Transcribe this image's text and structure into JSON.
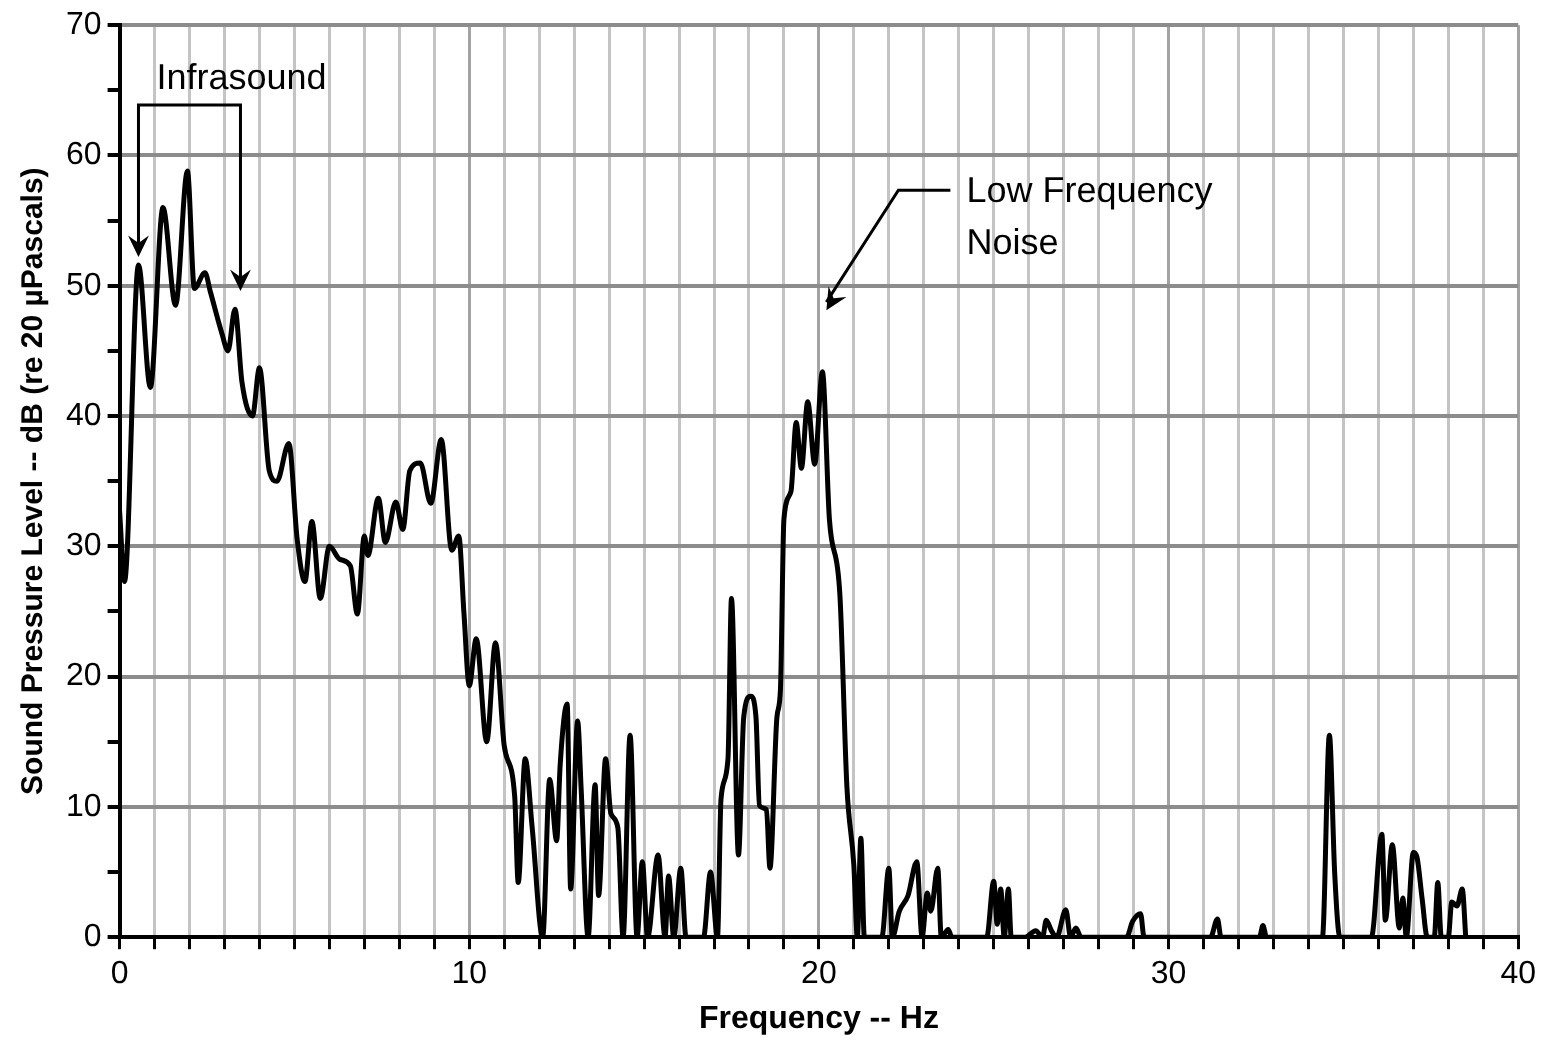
{
  "chart_data": {
    "type": "line",
    "xlabel": "Frequency -- Hz",
    "ylabel": "Sound Pressure Level -- dB (re 20 µPascals)",
    "xlim": [
      0,
      40
    ],
    "ylim": [
      0,
      70
    ],
    "xticks": [
      0,
      {
        "value": 1,
        "label": null
      },
      {
        "value": 2,
        "label": null
      },
      {
        "value": 3,
        "label": null
      },
      {
        "value": 4,
        "label": null
      },
      {
        "value": 5,
        "label": null
      },
      {
        "value": 6,
        "label": null
      },
      {
        "value": 7,
        "label": null
      },
      {
        "value": 8,
        "label": null
      },
      {
        "value": 9,
        "label": null
      },
      10,
      {
        "value": 11,
        "label": null
      },
      {
        "value": 12,
        "label": null
      },
      {
        "value": 13,
        "label": null
      },
      {
        "value": 14,
        "label": null
      },
      {
        "value": 15,
        "label": null
      },
      {
        "value": 16,
        "label": null
      },
      {
        "value": 17,
        "label": null
      },
      {
        "value": 18,
        "label": null
      },
      {
        "value": 19,
        "label": null
      },
      20,
      {
        "value": 21,
        "label": null
      },
      {
        "value": 22,
        "label": null
      },
      {
        "value": 23,
        "label": null
      },
      {
        "value": 24,
        "label": null
      },
      {
        "value": 25,
        "label": null
      },
      {
        "value": 26,
        "label": null
      },
      {
        "value": 27,
        "label": null
      },
      {
        "value": 28,
        "label": null
      },
      {
        "value": 29,
        "label": null
      },
      30,
      {
        "value": 31,
        "label": null
      },
      {
        "value": 32,
        "label": null
      },
      {
        "value": 33,
        "label": null
      },
      {
        "value": 34,
        "label": null
      },
      {
        "value": 35,
        "label": null
      },
      {
        "value": 36,
        "label": null
      },
      {
        "value": 37,
        "label": null
      },
      {
        "value": 38,
        "label": null
      },
      {
        "value": 39,
        "label": null
      },
      40
    ],
    "yticks": [
      0,
      {
        "value": 5,
        "label": null
      },
      10,
      {
        "value": 15,
        "label": null
      },
      20,
      {
        "value": 25,
        "label": null
      },
      30,
      {
        "value": 35,
        "label": null
      },
      40,
      {
        "value": 45,
        "label": null
      },
      50,
      {
        "value": 55,
        "label": null
      },
      60,
      {
        "value": 65,
        "label": null
      },
      70
    ],
    "grid": true,
    "legend": false,
    "marker": "none",
    "line_style": "solid",
    "series": [
      {
        "color": "#000000",
        "x": [
          0,
          0.14,
          0.54,
          0.88,
          1.24,
          1.6,
          1.94,
          2.14,
          2.44,
          2.6,
          2.93,
          3.1,
          3.3,
          3.5,
          3.8,
          4.0,
          4.28,
          4.5,
          4.84,
          5.08,
          5.3,
          5.5,
          5.74,
          6.0,
          6.3,
          6.6,
          6.8,
          7.0,
          7.1,
          7.4,
          7.6,
          7.9,
          8.1,
          8.3,
          8.6,
          8.9,
          9.2,
          9.5,
          9.7,
          9.85,
          10.0,
          10.2,
          10.5,
          10.75,
          11.0,
          11.3,
          11.4,
          11.6,
          11.8,
          12.1,
          12.3,
          12.5,
          12.6,
          12.8,
          12.9,
          13.1,
          13.2,
          13.4,
          13.6,
          13.7,
          13.9,
          14.05,
          14.25,
          14.4,
          14.6,
          14.8,
          14.95,
          15.1,
          15.4,
          15.6,
          15.7,
          15.85,
          16.05,
          16.2,
          16.7,
          16.9,
          17.1,
          17.2,
          17.4,
          17.5,
          17.7,
          17.85,
          18.05,
          18.2,
          18.3,
          18.5,
          18.6,
          18.8,
          18.9,
          19.0,
          19.2,
          19.35,
          19.5,
          19.68,
          19.88,
          20.1,
          20.3,
          20.6,
          20.8,
          21.0,
          21.1,
          21.2,
          21.3,
          21.6,
          21.8,
          22.0,
          22.1,
          22.3,
          22.55,
          22.8,
          22.95,
          23.1,
          23.2,
          23.4,
          23.5,
          23.7,
          23.8,
          24.8,
          25.0,
          25.1,
          25.2,
          25.3,
          25.42,
          25.5,
          25.9,
          26.2,
          26.4,
          26.5,
          26.65,
          26.8,
          27.06,
          27.2,
          27.35,
          27.5,
          28.8,
          28.97,
          29.2,
          29.3,
          31.2,
          31.4,
          31.5,
          32.6,
          32.7,
          32.8,
          34.4,
          34.6,
          34.75,
          34.9,
          35.8,
          36.1,
          36.2,
          36.4,
          36.6,
          36.7,
          36.8,
          37.0,
          37.1,
          37.25,
          37.4,
          37.6,
          37.7,
          37.8,
          38.0,
          38.1,
          38.25,
          38.4,
          38.5
        ],
        "values": [
          32.7,
          27.3,
          51.6,
          42.2,
          56,
          48.5,
          58.8,
          49.8,
          51,
          49.5,
          46.3,
          45,
          48.2,
          42.6,
          40,
          43.7,
          35.8,
          35,
          37.9,
          30.5,
          27.3,
          31.9,
          26,
          30,
          29,
          28.5,
          24.8,
          30.8,
          29.3,
          33.7,
          30.3,
          33.4,
          31.3,
          35.8,
          36.4,
          33.3,
          38.2,
          29.7,
          30.8,
          24.8,
          19.3,
          22.9,
          15,
          22.6,
          14.7,
          10.8,
          4.2,
          13.7,
          8.4,
          0,
          12.1,
          7.4,
          13.2,
          17.9,
          3.7,
          16.6,
          11.4,
          0,
          11.7,
          3.2,
          13.7,
          9.5,
          8.4,
          0,
          15.5,
          0,
          5.8,
          0,
          6.3,
          0,
          4.7,
          0,
          5.3,
          0,
          0,
          5,
          0,
          10.6,
          13.7,
          26,
          6.3,
          16.9,
          18.5,
          16.9,
          10.1,
          9.8,
          5.3,
          16.9,
          19,
          32.1,
          34.2,
          39.5,
          36,
          41.1,
          36.3,
          43.4,
          32.1,
          26.3,
          11.6,
          5.5,
          0,
          7.6,
          0,
          0,
          0,
          5.3,
          0,
          2,
          3.2,
          5.8,
          0,
          3.4,
          2,
          5.3,
          0,
          0.6,
          0,
          0,
          4.3,
          1,
          3.7,
          0,
          3.7,
          0,
          0,
          0.5,
          0,
          1.3,
          0.5,
          0,
          2.1,
          0,
          0.7,
          0,
          0,
          1.2,
          1.8,
          0,
          0,
          1.4,
          0,
          0,
          0.9,
          0,
          0,
          15.5,
          5,
          0,
          0,
          7.9,
          1.3,
          7.1,
          0.7,
          3,
          0,
          6.5,
          6.2,
          3,
          0,
          0,
          4.2,
          0,
          0,
          2.7,
          2.4,
          3.7,
          0
        ]
      }
    ],
    "annotations": [
      "Infrasound",
      "Low Frequency Noise"
    ]
  }
}
